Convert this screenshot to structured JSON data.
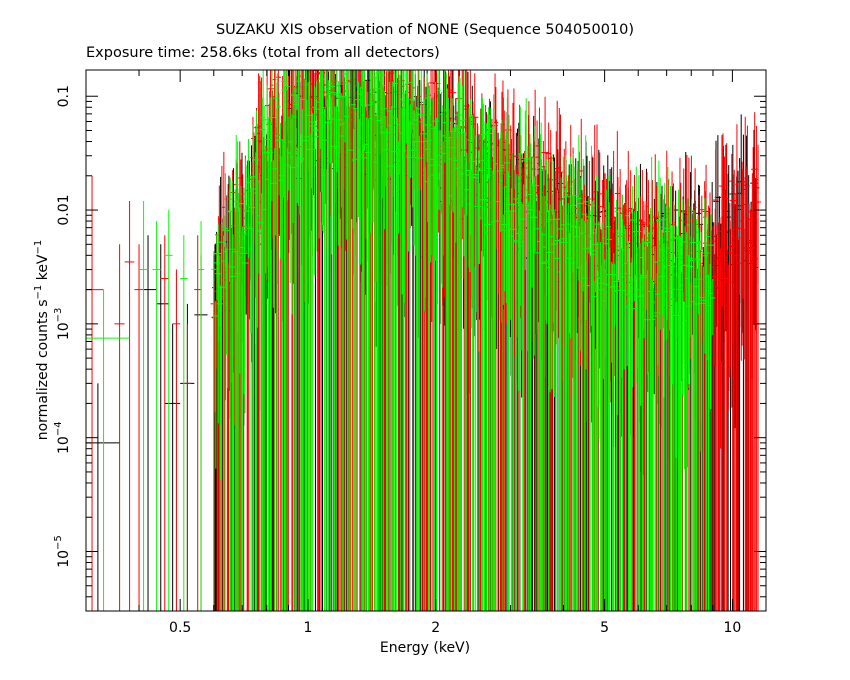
{
  "chart_data": {
    "type": "scatter",
    "title": "SUZAKU XIS observation of NONE (Sequence 504050010)",
    "subtitle": "Exposure time: 258.6ks (total from all detectors)",
    "xlabel": "Energy (keV)",
    "ylabel_parts": {
      "main": "normalized counts s",
      "exp1": "−1",
      "mid": " keV",
      "exp2": "−1"
    },
    "x_scale": "log",
    "y_scale": "log",
    "xlim": [
      0.3,
      12
    ],
    "ylim": [
      3e-06,
      0.17
    ],
    "grid": false,
    "x_ticks": [
      {
        "value": 0.5,
        "label": "0.5"
      },
      {
        "value": 1,
        "label": "1"
      },
      {
        "value": 2,
        "label": "2"
      },
      {
        "value": 5,
        "label": "5"
      },
      {
        "value": 10,
        "label": "10"
      }
    ],
    "x_minor_ticks": [
      0.3,
      0.4,
      0.6,
      0.7,
      0.8,
      0.9,
      3,
      4,
      6,
      7,
      8,
      9
    ],
    "y_ticks": [
      {
        "value": 0.1,
        "label": "0.1"
      },
      {
        "value": 0.01,
        "label": "0.01"
      },
      {
        "value": 0.001,
        "mantissa": "10",
        "exponent": "−3"
      },
      {
        "value": 0.0001,
        "mantissa": "10",
        "exponent": "−4"
      },
      {
        "value": 1e-05,
        "mantissa": "10",
        "exponent": "−5"
      }
    ],
    "series": [
      {
        "color": "#000000",
        "points": [
          {
            "x": 0.32,
            "y": 9e-05,
            "xlo": 0.3,
            "xhi": 0.36,
            "ylo": 3e-06,
            "yhi": 0.0003
          },
          {
            "x": 0.42,
            "y": 0.002,
            "xlo": 0.41,
            "xhi": 0.44,
            "ylo": 3e-06,
            "yhi": 0.006
          },
          {
            "x": 0.45,
            "y": 0.0015,
            "xlo": 0.44,
            "xhi": 0.47,
            "ylo": 3e-06,
            "yhi": 0.005
          },
          {
            "x": 0.48,
            "y": 0.0002,
            "xlo": 0.46,
            "xhi": 0.5,
            "ylo": 3e-06,
            "yhi": 0.001
          },
          {
            "x": 0.52,
            "y": 0.0003,
            "xlo": 0.5,
            "xhi": 0.54,
            "ylo": 3e-06,
            "yhi": 0.0015
          },
          {
            "x": 0.56,
            "y": 0.0012,
            "xlo": 0.54,
            "xhi": 0.58,
            "ylo": 3e-06,
            "yhi": 0.004
          }
        ],
        "profile": [
          [
            0.6,
            0.002
          ],
          [
            0.7,
            0.005
          ],
          [
            0.8,
            0.02
          ],
          [
            0.9,
            0.04
          ],
          [
            1.0,
            0.05
          ],
          [
            1.2,
            0.055
          ],
          [
            1.4,
            0.05
          ],
          [
            1.8,
            0.035
          ],
          [
            2.2,
            0.025
          ],
          [
            3.0,
            0.012
          ],
          [
            4.0,
            0.006
          ],
          [
            5.0,
            0.004
          ],
          [
            6.0,
            0.003
          ],
          [
            8.0,
            0.004
          ],
          [
            10.0,
            0.006
          ],
          [
            11.5,
            0.008
          ]
        ]
      },
      {
        "color": "#ff0000",
        "points": [
          {
            "x": 0.31,
            "y": 0.002,
            "xlo": 0.3,
            "xhi": 0.33,
            "ylo": 3e-06,
            "yhi": 0.02
          },
          {
            "x": 0.36,
            "y": 0.001,
            "xlo": 0.35,
            "xhi": 0.37,
            "ylo": 3e-06,
            "yhi": 0.005
          },
          {
            "x": 0.38,
            "y": 0.0035,
            "xlo": 0.37,
            "xhi": 0.39,
            "ylo": 3e-06,
            "yhi": 0.012
          },
          {
            "x": 0.4,
            "y": 0.002,
            "xlo": 0.39,
            "xhi": 0.41,
            "ylo": 3e-06,
            "yhi": 0.005
          },
          {
            "x": 0.46,
            "y": 0.0025,
            "xlo": 0.45,
            "xhi": 0.47,
            "ylo": 3e-06,
            "yhi": 0.006
          },
          {
            "x": 0.49,
            "y": 0.001,
            "xlo": 0.48,
            "xhi": 0.5,
            "ylo": 3e-06,
            "yhi": 0.003
          },
          {
            "x": 0.52,
            "y": 0.0003,
            "xlo": 0.51,
            "xhi": 0.53,
            "ylo": 3e-06,
            "yhi": 0.001
          },
          {
            "x": 0.55,
            "y": 0.002,
            "xlo": 0.54,
            "xhi": 0.56,
            "ylo": 3e-06,
            "yhi": 0.006
          },
          {
            "x": 0.6,
            "y": 0.0015,
            "xlo": 0.59,
            "xhi": 0.61,
            "ylo": 3e-06,
            "yhi": 0.004
          }
        ],
        "profile": [
          [
            0.6,
            0.003
          ],
          [
            0.7,
            0.008
          ],
          [
            0.8,
            0.04
          ],
          [
            0.9,
            0.08
          ],
          [
            1.0,
            0.1
          ],
          [
            1.2,
            0.1
          ],
          [
            1.4,
            0.09
          ],
          [
            1.8,
            0.06
          ],
          [
            2.2,
            0.04
          ],
          [
            3.0,
            0.02
          ],
          [
            4.0,
            0.01
          ],
          [
            5.0,
            0.006
          ],
          [
            6.0,
            0.004
          ],
          [
            8.0,
            0.004
          ],
          [
            9.5,
            0.006
          ],
          [
            10.5,
            0.008
          ],
          [
            11.5,
            0.01
          ]
        ]
      },
      {
        "color": "#00ff00",
        "points": [
          {
            "x": 0.33,
            "y": 0.00075,
            "xlo": 0.3,
            "xhi": 0.38,
            "ylo": 3e-06,
            "yhi": 0.002
          },
          {
            "x": 0.41,
            "y": 0.003,
            "xlo": 0.4,
            "xhi": 0.42,
            "ylo": 3e-06,
            "yhi": 0.012
          },
          {
            "x": 0.44,
            "y": 0.003,
            "xlo": 0.43,
            "xhi": 0.45,
            "ylo": 3e-06,
            "yhi": 0.008
          },
          {
            "x": 0.47,
            "y": 0.004,
            "xlo": 0.46,
            "xhi": 0.48,
            "ylo": 3e-06,
            "yhi": 0.01
          },
          {
            "x": 0.51,
            "y": 0.0025,
            "xlo": 0.5,
            "xhi": 0.52,
            "ylo": 3e-06,
            "yhi": 0.006
          },
          {
            "x": 0.56,
            "y": 0.003,
            "xlo": 0.55,
            "xhi": 0.57,
            "ylo": 3e-06,
            "yhi": 0.008
          },
          {
            "x": 0.62,
            "y": 0.0015,
            "xlo": 0.61,
            "xhi": 0.63,
            "ylo": 3e-06,
            "yhi": 0.004
          }
        ],
        "profile": [
          [
            0.6,
            0.003
          ],
          [
            0.7,
            0.006
          ],
          [
            0.8,
            0.03
          ],
          [
            0.9,
            0.06
          ],
          [
            1.0,
            0.08
          ],
          [
            1.2,
            0.08
          ],
          [
            1.4,
            0.07
          ],
          [
            1.8,
            0.05
          ],
          [
            2.2,
            0.035
          ],
          [
            3.0,
            0.015
          ],
          [
            4.0,
            0.007
          ],
          [
            5.0,
            0.004
          ],
          [
            6.0,
            0.003
          ],
          [
            8.0,
            0.003
          ],
          [
            9.0,
            0.003
          ]
        ]
      }
    ]
  }
}
